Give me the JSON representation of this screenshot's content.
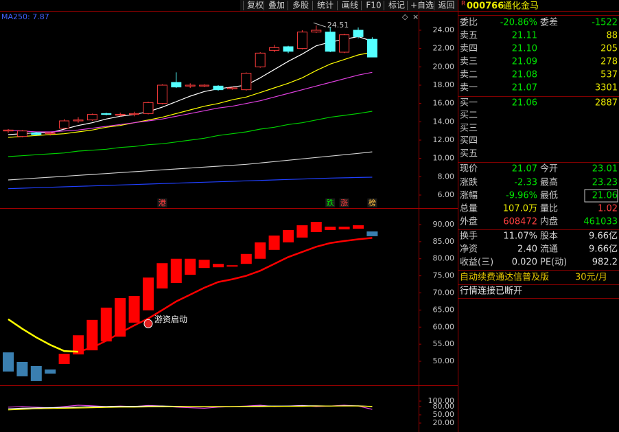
{
  "toolbar": {
    "buttons": [
      "复权",
      "叠加",
      "多股",
      "统计",
      "画线",
      "F10",
      "标记",
      "+自选",
      "返回"
    ]
  },
  "stock_header": {
    "marker": "R",
    "code": "000766",
    "name": "通化金马"
  },
  "quote": {
    "rows": [
      {
        "cells": [
          "委比",
          "-20.86%",
          "委差",
          "-1522"
        ],
        "colors": [
          "#c8c8c8",
          "#00e600",
          "#c8c8c8",
          "#00e600"
        ]
      },
      {
        "cells": [
          "卖五",
          "21.11",
          "88"
        ],
        "colors": [
          "#c8c8c8",
          "#00e600",
          "#e8e800"
        ]
      },
      {
        "cells": [
          "卖四",
          "21.10",
          "205"
        ],
        "colors": [
          "#c8c8c8",
          "#00e600",
          "#e8e800"
        ]
      },
      {
        "cells": [
          "卖三",
          "21.09",
          "278"
        ],
        "colors": [
          "#c8c8c8",
          "#00e600",
          "#e8e800"
        ]
      },
      {
        "cells": [
          "卖二",
          "21.08",
          "537"
        ],
        "colors": [
          "#c8c8c8",
          "#00e600",
          "#e8e800"
        ]
      },
      {
        "cells": [
          "卖一",
          "21.07",
          "3301"
        ],
        "colors": [
          "#c8c8c8",
          "#00e600",
          "#e8e800"
        ]
      },
      {
        "cells": [
          "买一",
          "21.06",
          "2887"
        ],
        "colors": [
          "#c8c8c8",
          "#00e600",
          "#e8e800"
        ]
      },
      {
        "cells": [
          "买二"
        ],
        "colors": [
          "#c8c8c8"
        ]
      },
      {
        "cells": [
          "买三"
        ],
        "colors": [
          "#c8c8c8"
        ]
      },
      {
        "cells": [
          "买四"
        ],
        "colors": [
          "#c8c8c8"
        ]
      },
      {
        "cells": [
          "买五"
        ],
        "colors": [
          "#c8c8c8"
        ]
      },
      {
        "cells": [
          "现价",
          "21.07",
          "今开",
          "23.01"
        ],
        "colors": [
          "#c8c8c8",
          "#00e600",
          "#c8c8c8",
          "#00e600"
        ]
      },
      {
        "cells": [
          "涨跌",
          "-2.33",
          "最高",
          "23.23"
        ],
        "colors": [
          "#c8c8c8",
          "#00e600",
          "#c8c8c8",
          "#00e600"
        ]
      },
      {
        "cells": [
          "涨幅",
          "-9.96%",
          "最低",
          "21.06"
        ],
        "colors": [
          "#c8c8c8",
          "#00e600",
          "#c8c8c8",
          "#00e600"
        ]
      },
      {
        "cells": [
          "总量",
          "107.0万",
          "量比",
          "1.02"
        ],
        "colors": [
          "#c8c8c8",
          "#e8e800",
          "#c8c8c8",
          "#ff4040"
        ]
      },
      {
        "cells": [
          "外盘",
          "608472",
          "内盘",
          "461033"
        ],
        "colors": [
          "#c8c8c8",
          "#ff4040",
          "#c8c8c8",
          "#00e600"
        ]
      },
      {
        "cells": [
          "换手",
          "11.07%",
          "股本",
          "9.66亿"
        ],
        "colors": [
          "#c8c8c8",
          "#e0e0e0",
          "#c8c8c8",
          "#e0e0e0"
        ]
      },
      {
        "cells": [
          "净资",
          "2.40",
          "流通",
          "9.66亿"
        ],
        "colors": [
          "#c8c8c8",
          "#e0e0e0",
          "#c8c8c8",
          "#e0e0e0"
        ]
      },
      {
        "cells": [
          "收益(三)",
          "0.020",
          "PE(动)",
          "982.2"
        ],
        "colors": [
          "#c8c8c8",
          "#e0e0e0",
          "#c8c8c8",
          "#e0e0e0"
        ]
      }
    ],
    "promo": {
      "text": "自动续费通达信普及版",
      "price": "30元/月"
    },
    "status": "行情连接已断开"
  },
  "chart_data": [
    {
      "type": "candlestick",
      "title": "MA250: 7.87",
      "high_label": "24.51",
      "open": [
        13.0,
        12.4,
        12.8,
        12.7,
        13.3,
        14.1,
        14.2,
        14.9,
        14.8,
        14.8,
        14.9,
        16.0,
        18.3,
        17.9,
        17.9,
        17.9,
        17.6,
        17.5,
        20.0,
        21.8,
        22.2,
        22.0,
        23.8,
        23.8,
        21.6,
        24.0,
        23.01
      ],
      "high": [
        13.2,
        13.1,
        12.9,
        12.9,
        14.3,
        14.5,
        14.9,
        15.0,
        15.0,
        15.1,
        16.2,
        18.1,
        19.4,
        18.2,
        18.1,
        18.0,
        17.8,
        19.4,
        21.6,
        22.4,
        22.3,
        24.0,
        24.51,
        24.3,
        23.6,
        24.3,
        23.23
      ],
      "low": [
        12.8,
        12.3,
        12.5,
        12.5,
        13.2,
        13.9,
        14.1,
        14.7,
        14.6,
        14.6,
        14.8,
        15.9,
        17.7,
        17.7,
        17.8,
        17.4,
        17.5,
        17.4,
        19.9,
        21.6,
        21.5,
        21.9,
        23.7,
        21.6,
        21.5,
        23.1,
        21.06
      ],
      "close": [
        13.1,
        13.0,
        12.6,
        12.8,
        14.1,
        14.2,
        14.8,
        14.8,
        14.8,
        14.9,
        16.1,
        18.0,
        17.8,
        18.0,
        18.0,
        17.5,
        17.7,
        19.3,
        21.5,
        22.1,
        21.7,
        23.8,
        24.0,
        21.7,
        23.5,
        23.3,
        21.07
      ],
      "up_color": "#ff3c3c",
      "down_color": "#54ffff",
      "series": [
        {
          "color": "#ffffff",
          "values": [
            12.6,
            12.7,
            12.8,
            12.8,
            13.2,
            13.6,
            13.9,
            14.3,
            14.6,
            14.8,
            15.1,
            15.6,
            16.2,
            16.8,
            17.3,
            17.6,
            17.8,
            18.0,
            18.8,
            19.7,
            20.6,
            21.4,
            22.3,
            22.7,
            23.0,
            23.3,
            22.8
          ]
        },
        {
          "color": "#ffff00",
          "values": [
            12.3,
            12.4,
            12.5,
            12.6,
            12.7,
            12.9,
            13.1,
            13.4,
            13.6,
            13.9,
            14.2,
            14.5,
            14.9,
            15.3,
            15.7,
            16.0,
            16.4,
            16.7,
            17.2,
            17.7,
            18.2,
            18.8,
            19.6,
            20.3,
            20.8,
            21.3,
            21.6
          ]
        },
        {
          "color": "#e040e0",
          "values": [
            13.1,
            13.0,
            12.9,
            12.9,
            13.0,
            13.1,
            13.3,
            13.5,
            13.7,
            13.9,
            14.1,
            14.3,
            14.6,
            14.9,
            15.2,
            15.5,
            15.7,
            16.0,
            16.3,
            16.7,
            17.1,
            17.5,
            17.9,
            18.3,
            18.7,
            19.1,
            19.4
          ]
        },
        {
          "color": "#00d000",
          "values": [
            10.2,
            10.3,
            10.4,
            10.5,
            10.6,
            10.8,
            10.9,
            11.0,
            11.2,
            11.3,
            11.5,
            11.6,
            11.8,
            12.0,
            12.2,
            12.5,
            12.7,
            12.9,
            13.2,
            13.4,
            13.7,
            13.9,
            14.2,
            14.5,
            14.7,
            14.9,
            15.15
          ]
        },
        {
          "color": "#d0d0d0",
          "values": [
            7.65,
            7.75,
            7.85,
            7.95,
            8.05,
            8.15,
            8.25,
            8.35,
            8.45,
            8.55,
            8.65,
            8.75,
            8.85,
            8.95,
            9.05,
            9.15,
            9.25,
            9.35,
            9.5,
            9.65,
            9.8,
            9.95,
            10.1,
            10.25,
            10.4,
            10.55,
            10.72
          ]
        },
        {
          "color": "#2040ff",
          "values": [
            6.7,
            6.75,
            6.8,
            6.85,
            6.9,
            6.95,
            7.0,
            7.05,
            7.1,
            7.15,
            7.2,
            7.25,
            7.3,
            7.35,
            7.4,
            7.45,
            7.5,
            7.55,
            7.6,
            7.65,
            7.7,
            7.75,
            7.8,
            7.85,
            7.88,
            7.92,
            7.95
          ]
        }
      ],
      "signal_labels": [
        null,
        null,
        null,
        null,
        null,
        null,
        null,
        null,
        null,
        null,
        null,
        "港",
        null,
        null,
        null,
        null,
        null,
        null,
        null,
        null,
        null,
        null,
        null,
        "跌",
        "涨",
        null,
        "榜"
      ],
      "signal_colors": [
        null,
        null,
        null,
        null,
        null,
        null,
        null,
        null,
        null,
        null,
        null,
        "#ff4040",
        null,
        null,
        null,
        null,
        null,
        null,
        null,
        null,
        null,
        null,
        null,
        "#00e600",
        "#ff4040",
        null,
        "#ffc040"
      ],
      "ylim": [
        4.8,
        25.65
      ],
      "yticks": [
        {
          "value": 24,
          "label": "24.00"
        },
        {
          "value": 22,
          "label": "22.00"
        },
        {
          "value": 20,
          "label": "20.00"
        },
        {
          "value": 18,
          "label": "18.00"
        },
        {
          "value": 16,
          "label": "16.00"
        },
        {
          "value": 14,
          "label": "14.00"
        },
        {
          "value": 12,
          "label": "12.00"
        },
        {
          "value": 10,
          "label": "10.00"
        },
        {
          "value": 8,
          "label": "8.00"
        },
        {
          "value": 6,
          "label": "6.00"
        }
      ]
    },
    {
      "type": "floating_bar",
      "low": [
        47.0,
        45.6,
        44.2,
        46.4,
        49.2,
        52.0,
        53.2,
        55.8,
        57.2,
        61.3,
        64.9,
        71.3,
        72.9,
        75.3,
        77.3,
        77.5,
        77.7,
        78.5,
        80.0,
        82.6,
        84.8,
        86.2,
        87.8,
        88.4,
        88.6,
        88.8,
        86.6
      ],
      "high": [
        52.6,
        49.8,
        48.6,
        47.6,
        52.2,
        57.6,
        62.1,
        65.7,
        68.5,
        69.1,
        74.5,
        78.7,
        80.0,
        80.0,
        79.7,
        78.5,
        78.1,
        81.4,
        84.8,
        86.8,
        88.4,
        89.8,
        90.8,
        89.4,
        89.4,
        89.8,
        88.0
      ],
      "bar_colors": [
        "#3a7fb0",
        "#3a7fb0",
        "#3a7fb0",
        "#3a7fb0",
        "#ff0000",
        "#ff0000",
        "#ff0000",
        "#ff0000",
        "#ff0000",
        "#ff0000",
        "#ff0000",
        "#ff0000",
        "#ff0000",
        "#ff0000",
        "#ff0000",
        "#ff0000",
        "#ff0000",
        "#ff0000",
        "#ff0000",
        "#ff0000",
        "#ff0000",
        "#ff0000",
        "#ff0000",
        "#ff0000",
        "#ff0000",
        "#ff0000",
        "#3a7fb0"
      ],
      "series": [
        {
          "color": "#ffff00",
          "values": [
            62.3,
            59.5,
            57.0,
            54.8,
            53.0,
            52.8,
            null,
            null,
            null,
            null,
            null,
            null,
            null,
            null,
            null,
            null,
            null,
            null,
            null,
            null,
            null,
            null,
            null,
            null,
            null,
            null,
            null
          ]
        },
        {
          "color": "#ff0000",
          "values": [
            null,
            null,
            null,
            null,
            null,
            52.8,
            54.0,
            56.0,
            58.3,
            60.5,
            62.5,
            65.0,
            67.5,
            69.5,
            71.5,
            73.2,
            74.0,
            75.0,
            76.5,
            78.5,
            80.5,
            82.0,
            83.5,
            84.6,
            85.2,
            85.7,
            86.1
          ]
        }
      ],
      "annotations": [
        {
          "text": "游资启动",
          "x": 10,
          "y": 61
        }
      ],
      "ylim": [
        43.17,
        94.42
      ],
      "yticks": [
        {
          "value": 90,
          "label": "90.00"
        },
        {
          "value": 85,
          "label": "85.00"
        },
        {
          "value": 80,
          "label": "80.00"
        },
        {
          "value": 75,
          "label": "75.00"
        },
        {
          "value": 70,
          "label": "70.00"
        },
        {
          "value": 65,
          "label": "65.00"
        },
        {
          "value": 60,
          "label": "60.00"
        },
        {
          "value": 55,
          "label": "55.00"
        },
        {
          "value": 50,
          "label": "50.00"
        }
      ]
    },
    {
      "type": "line",
      "series": [
        {
          "color": "#e040e0",
          "values": [
            78,
            80,
            78,
            75,
            80,
            85,
            83,
            80,
            82,
            80,
            84,
            82,
            78,
            76,
            74,
            78,
            80,
            82,
            85,
            80,
            82,
            84,
            80,
            82,
            85,
            82,
            70
          ]
        },
        {
          "color": "#ffffff",
          "values": [
            72,
            74,
            75,
            76,
            77,
            78,
            80,
            80,
            81,
            81,
            82,
            82,
            81,
            80,
            80,
            80,
            80,
            81,
            82,
            82,
            82,
            83,
            83,
            82,
            83,
            83,
            80
          ]
        },
        {
          "color": "#ffff00",
          "values": [
            68,
            70,
            72,
            73,
            74,
            75,
            76,
            77,
            78,
            78,
            79,
            79,
            80,
            80,
            80,
            80,
            80,
            80,
            80,
            81,
            81,
            81,
            82,
            82,
            82,
            82,
            81
          ]
        }
      ],
      "ylim": [
        -7.5,
        152.5
      ],
      "yticks": [
        {
          "value": 100,
          "label": "100.00"
        },
        {
          "value": 80,
          "label": "80.00"
        },
        {
          "value": 50,
          "label": "50.00"
        },
        {
          "value": 20,
          "label": "20.00"
        }
      ]
    }
  ]
}
